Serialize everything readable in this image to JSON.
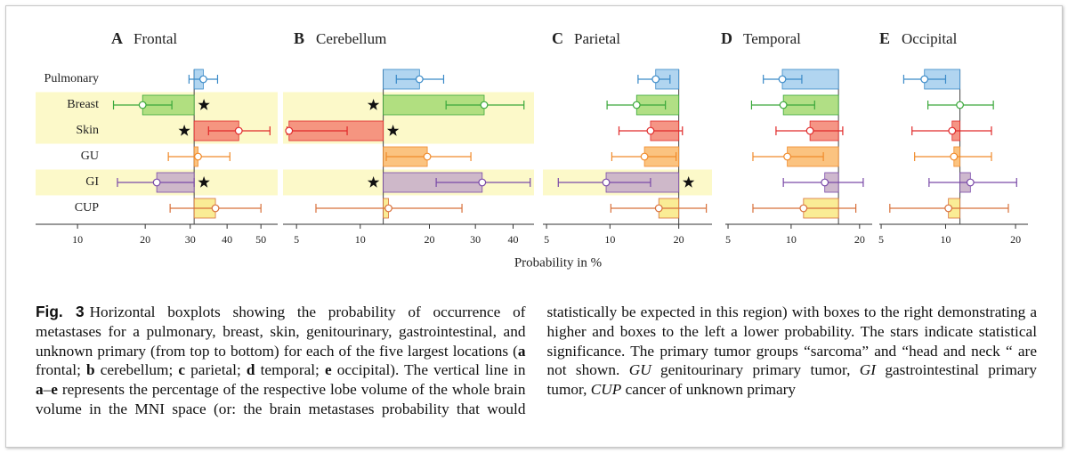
{
  "chart_data": [
    {
      "type": "boxplot",
      "label": "A",
      "title": "Frontal",
      "xlabel": "Probability in %",
      "categories": [
        "Pulmonary",
        "Breast",
        "Skin",
        "GU",
        "GI",
        "CUP"
      ],
      "colors": [
        "#a9d0ee",
        "#a8dc78",
        "#f48a78",
        "#fbbd72",
        "#c9b0c9",
        "#f9ea8a"
      ],
      "line_colors": [
        "#3a8ac8",
        "#3aa83a",
        "#e02a2a",
        "#f08a2a",
        "#7a4aa8",
        "#d8703a"
      ],
      "xscale": "logit",
      "xlim": [
        6.3,
        55
      ],
      "xticks": [
        10,
        20,
        30,
        40,
        50
      ],
      "reference": 31,
      "values": [
        33.4,
        19.5,
        43.4,
        32.0,
        22.3,
        36.7
      ],
      "lower": [
        29.7,
        14.6,
        34.8,
        24.8,
        15.2,
        25.2
      ],
      "upper": [
        37.3,
        25.6,
        52.7,
        40.8,
        31.0,
        50.0
      ],
      "significant": [
        false,
        true,
        true,
        false,
        true,
        false
      ]
    },
    {
      "type": "boxplot",
      "label": "B",
      "title": "Cerebellum",
      "xscale": "logit",
      "xlim": [
        4.3,
        46
      ],
      "xticks": [
        5,
        10,
        20,
        30,
        40
      ],
      "reference": 12.7,
      "values": [
        18.2,
        32.2,
        4.6,
        19.6,
        31.7,
        13.4
      ],
      "lower": [
        14.5,
        23.3,
        4.5,
        13.1,
        21.3,
        6.2
      ],
      "upper": [
        22.8,
        43.1,
        8.7,
        28.9,
        44.9,
        26.8
      ],
      "significant": [
        false,
        true,
        true,
        false,
        true,
        false
      ]
    },
    {
      "type": "boxplot",
      "label": "C",
      "title": "Parietal",
      "xscale": "logit",
      "xlim": [
        4.8,
        27
      ],
      "xticks": [
        5,
        10,
        20
      ],
      "reference": 20,
      "values": [
        16.0,
        13.2,
        15.2,
        14.3,
        9.6,
        16.5
      ],
      "lower": [
        13.4,
        9.7,
        11.0,
        10.2,
        5.7,
        10.1
      ],
      "upper": [
        18.4,
        17.6,
        20.7,
        19.5,
        15.2,
        25.7
      ],
      "significant": [
        false,
        false,
        false,
        false,
        true,
        false
      ]
    },
    {
      "type": "boxplot",
      "label": "D",
      "title": "Temporal",
      "xscale": "logit",
      "xlim": [
        4.85,
        22.5
      ],
      "xticks": [
        5,
        10,
        20
      ],
      "reference": 16.3,
      "values": [
        9.1,
        9.2,
        12.2,
        9.6,
        14.2,
        11.4
      ],
      "lower": [
        7.4,
        6.5,
        8.5,
        6.6,
        9.2,
        6.6
      ],
      "upper": [
        11.2,
        12.8,
        17.0,
        14.0,
        20.7,
        19.3
      ],
      "significant": [
        false,
        false,
        false,
        false,
        false,
        false
      ]
    },
    {
      "type": "boxplot",
      "label": "E",
      "title": "Occipital",
      "xscale": "logit",
      "xlim": [
        4.9,
        22.4
      ],
      "xticks": [
        5,
        10,
        20
      ],
      "reference": 11.6,
      "values": [
        8.0,
        11.6,
        10.7,
        10.9,
        12.9,
        10.3
      ],
      "lower": [
        6.4,
        8.3,
        7.0,
        7.2,
        8.4,
        5.5
      ],
      "upper": [
        10.0,
        16.2,
        15.9,
        15.9,
        20.2,
        18.7
      ],
      "significant": [
        false,
        false,
        false,
        false,
        false,
        false
      ]
    }
  ],
  "caption": {
    "label": "Fig. 3",
    "runs": [
      {
        "text": "Horizontal boxplots showing the probability of occurrence of metastases for a pulmonary, breast, skin, genitourinary, gastrointestinal, and unknown primary (from top to bottom) for each of the five largest locations ("
      },
      {
        "text": "a",
        "style": "bold"
      },
      {
        "text": " frontal; "
      },
      {
        "text": "b",
        "style": "bold"
      },
      {
        "text": " cerebellum; "
      },
      {
        "text": "c",
        "style": "bold"
      },
      {
        "text": " parietal; "
      },
      {
        "text": "d",
        "style": "bold"
      },
      {
        "text": " temporal; "
      },
      {
        "text": "e",
        "style": "bold"
      },
      {
        "text": " occipital). The vertical line in "
      },
      {
        "text": "a",
        "style": "bold"
      },
      {
        "text": "–"
      },
      {
        "text": "e",
        "style": "bold"
      },
      {
        "text": " represents the percentage of the respective lobe volume of the whole brain volume in the MNI space (or: the brain metastases probability that would statistically be expected in this region) with boxes to the right demonstrating a higher and boxes to the left a lower probability. The stars indicate statistical significance. The primary tumor groups “sarcoma” and “head and neck “ are not shown. "
      },
      {
        "text": "GU",
        "style": "italic"
      },
      {
        "text": " genitourinary primary tumor, "
      },
      {
        "text": "GI",
        "style": "italic"
      },
      {
        "text": " gastrointestinal primary tumor, "
      },
      {
        "text": "CUP",
        "style": "italic"
      },
      {
        "text": " cancer of unknown primary"
      }
    ]
  }
}
